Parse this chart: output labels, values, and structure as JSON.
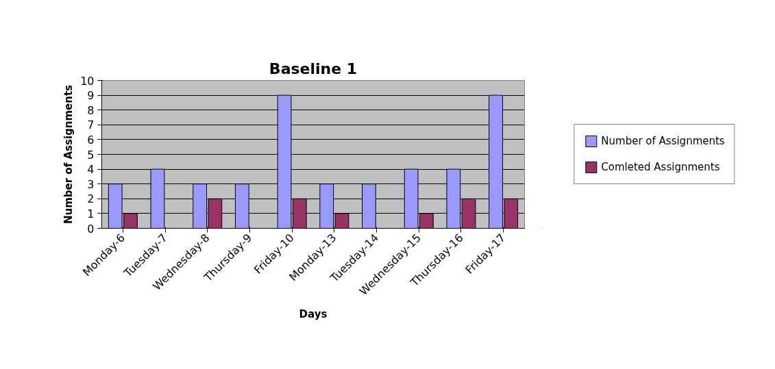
{
  "chart_data": {
    "type": "bar",
    "title": "Baseline 1",
    "xlabel": "Days",
    "ylabel": "Number of Assignments",
    "categories": [
      "Monday-6",
      "Tuesday-7",
      "Wednesday-8",
      "Thursday-9",
      "Friday-10",
      "Monday-13",
      "Tuesday-14",
      "Wednesday-15",
      "Thursday-16",
      "Friday-17"
    ],
    "series": [
      {
        "name": "Number of Assignments",
        "color": "#9999ff",
        "values": [
          3,
          4,
          3,
          3,
          9,
          3,
          3,
          4,
          4,
          9
        ]
      },
      {
        "name": "Comleted Assignments",
        "color": "#993366",
        "values": [
          1,
          0,
          2,
          0,
          2,
          1,
          0,
          1,
          2,
          2
        ]
      }
    ],
    "ylim": [
      0,
      10
    ],
    "yticks": [
      0,
      1,
      2,
      3,
      4,
      5,
      6,
      7,
      8,
      9,
      10
    ],
    "grid": "y",
    "legend": "right"
  }
}
